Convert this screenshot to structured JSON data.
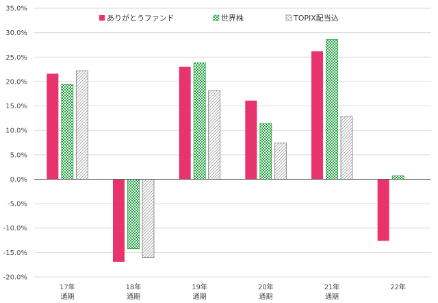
{
  "chart_data": {
    "type": "bar",
    "categories": [
      [
        "17年",
        "通期"
      ],
      [
        "18年",
        "通期"
      ],
      [
        "19年",
        "通期"
      ],
      [
        "20年",
        "通期"
      ],
      [
        "21年",
        "通期"
      ],
      [
        "22年",
        ""
      ]
    ],
    "series": [
      {
        "name": "ありがとうファンド",
        "pattern": "solid",
        "color": "#E8336D",
        "values": [
          21.6,
          -16.9,
          23.0,
          16.1,
          26.2,
          -12.6
        ]
      },
      {
        "name": "世界株",
        "pattern": "checker",
        "color": "#1BA33A",
        "values": [
          19.4,
          -14.2,
          23.8,
          11.4,
          28.6,
          0.7
        ]
      },
      {
        "name": "TOPIX配当込",
        "pattern": "diagonal",
        "color": "#777777",
        "values": [
          22.2,
          -16.0,
          18.1,
          7.4,
          12.8,
          null
        ]
      }
    ],
    "y_ticks": [
      "35.0%",
      "30.0%",
      "25.0%",
      "20.0%",
      "15.0%",
      "10.0%",
      "5.0%",
      "0.0%",
      "-5.0%",
      "-10.0%",
      "-15.0%",
      "-20.0%"
    ],
    "ylim": [
      -20,
      35
    ],
    "grid": true,
    "legend": "top"
  }
}
